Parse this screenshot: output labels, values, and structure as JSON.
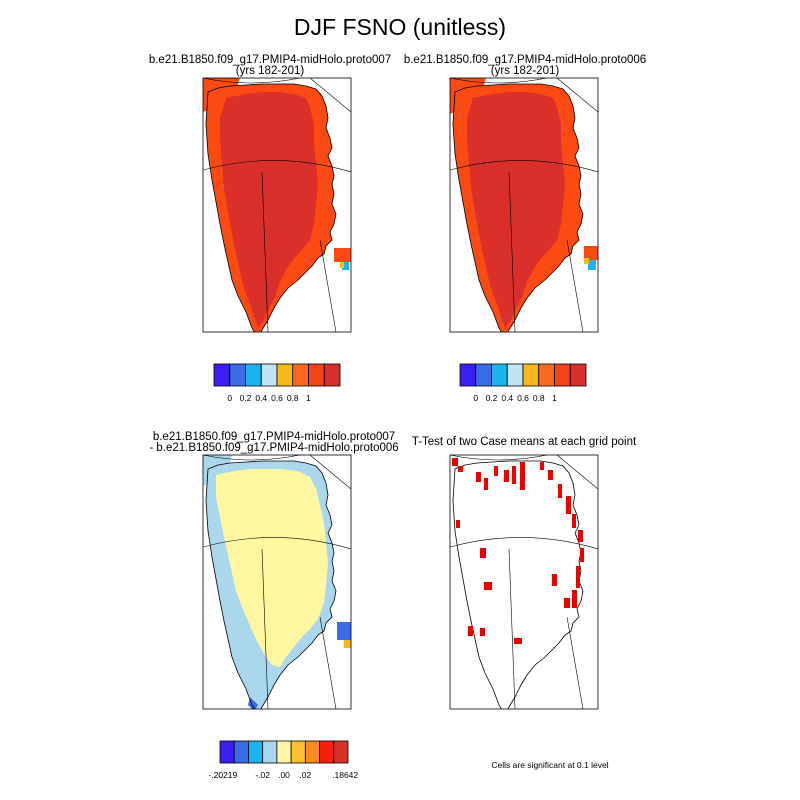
{
  "title": "DJF FSNO (unitless)",
  "panels": [
    {
      "title_line1": "b.e21.B1850.f09_g17.PMIP4-midHolo.proto007",
      "title_line2": "(yrs 182-201)"
    },
    {
      "title_line1": "b.e21.B1850.f09_g17.PMIP4-midHolo.proto006",
      "title_line2": "(yrs 182-201)"
    },
    {
      "title_line1": "b.e21.B1850.f09_g17.PMIP4-midHolo.proto007",
      "title_line2": "- b.e21.B1850.f09_g17.PMIP4-midHolo.proto006"
    },
    {
      "title_line1": "T-Test of two Case means at each grid point",
      "title_line2": ""
    }
  ],
  "colorbars": {
    "abs": {
      "colors": [
        "#3a1ff0",
        "#3a6be6",
        "#1ab4ee",
        "#bfe4f4",
        "#f7b81a",
        "#fb6a1e",
        "#f5431b",
        "#d9302c"
      ],
      "labels": [
        "0",
        "0.2",
        "0.4",
        "0.6",
        "0.8",
        "1"
      ]
    },
    "diff": {
      "colors": [
        "#3a1ff0",
        "#3a6be6",
        "#1ab4ee",
        "#a9d8ee",
        "#fff7a0",
        "#ffc02e",
        "#fb8a22",
        "#f21e10",
        "#d9302c"
      ],
      "labels": [
        "-.20219",
        "-.02",
        ".00",
        ".02",
        ".18642"
      ]
    }
  },
  "significance_note": "Cells are significant at 0.1 level",
  "map_colors": {
    "high_snow": "#d9302c",
    "coastal_snow": "#fb4a12",
    "diff_positive": "#fff7a0",
    "diff_negative": "#a9d8ee",
    "diff_strong_negative": "#3a6be6",
    "significant": "#ee0000"
  }
}
